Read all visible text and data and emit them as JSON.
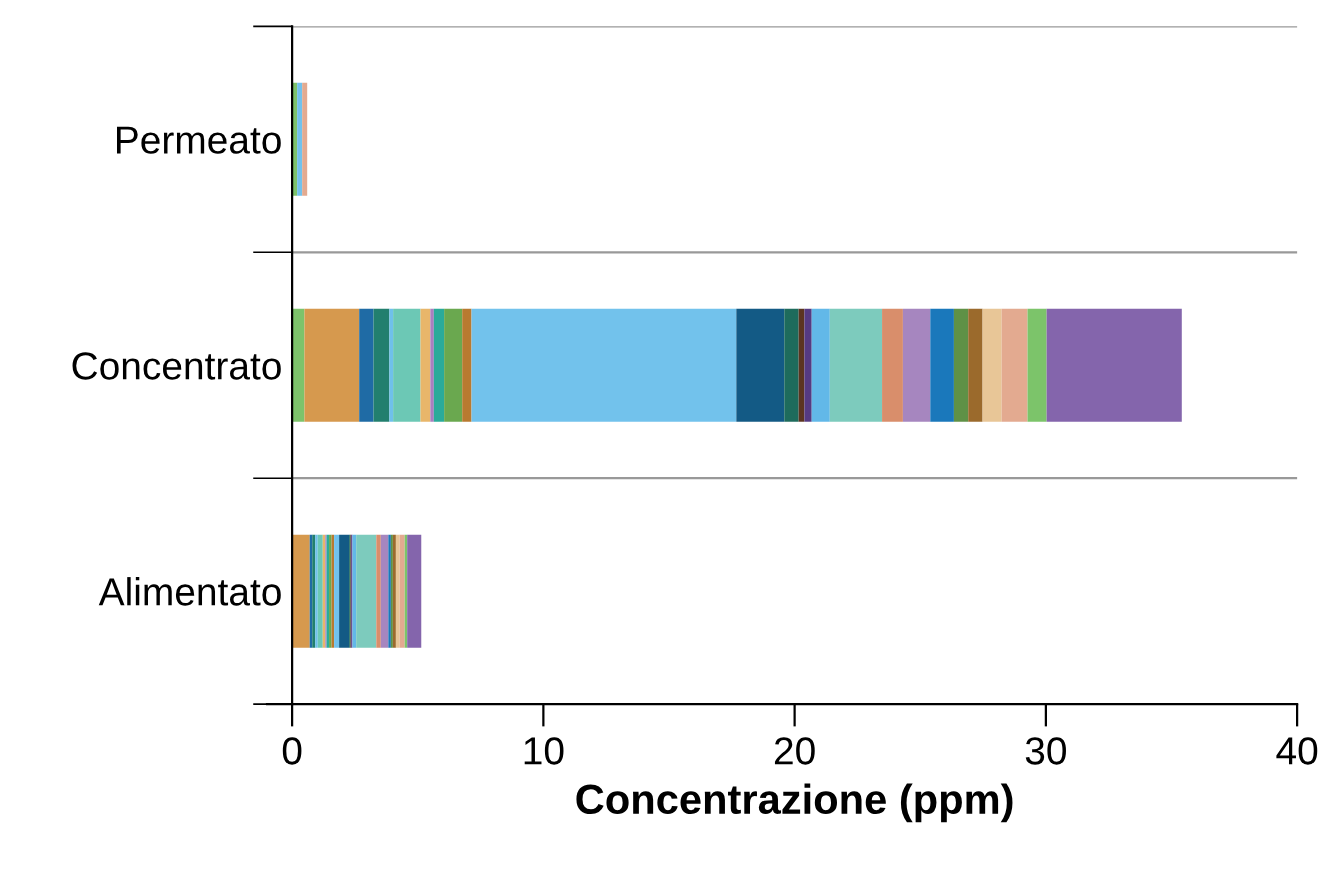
{
  "chart_data": {
    "type": "bar",
    "orientation": "horizontal",
    "stacked": true,
    "categories": [
      "Permeato",
      "Concentrato",
      "Alimentato"
    ],
    "xlabel": "Concentrazione (ppm)",
    "xlim": [
      0,
      40
    ],
    "xticks": [
      0,
      10,
      20,
      30,
      40
    ],
    "grid": "y",
    "legend": false,
    "series": [
      {
        "color": "#7dc36b",
        "values": [
          0.2,
          0.49,
          null
        ]
      },
      {
        "color": "#d6994e",
        "values": [
          0,
          2.18,
          0.7
        ]
      },
      {
        "color": "#1f6ba5",
        "values": [
          0,
          0.57,
          0.1
        ]
      },
      {
        "color": "#227f6e",
        "values": [
          0,
          0.63,
          0.12
        ]
      },
      {
        "color": "#6fc0eb",
        "values": [
          0,
          0.15,
          0.1
        ]
      },
      {
        "color": "#6cc8b5",
        "values": [
          0,
          1.09,
          0.2
        ]
      },
      {
        "color": "#e8b66a",
        "values": [
          0,
          0.39,
          0.1
        ]
      },
      {
        "color": "#a97fc0",
        "values": [
          0,
          0.14,
          0.05
        ]
      },
      {
        "color": "#2aab9a",
        "values": [
          0,
          0.41,
          0.1
        ]
      },
      {
        "color": "#6aa84f",
        "values": [
          0,
          0.72,
          0.1
        ]
      },
      {
        "color": "#b87a30",
        "values": [
          0,
          0.37,
          0.1
        ]
      },
      {
        "color": "#72c2ec",
        "values": [
          0.2,
          10.54,
          0.2
        ]
      },
      {
        "color": "#135a85",
        "values": [
          0,
          1.91,
          0.4
        ]
      },
      {
        "color": "#1e6b5c",
        "values": [
          0,
          0.57,
          0.05
        ]
      },
      {
        "color": "#5b3420",
        "values": [
          0,
          0.23,
          0.03
        ]
      },
      {
        "color": "#553a82",
        "values": [
          0,
          0.29,
          0.05
        ]
      },
      {
        "color": "#62b8e8",
        "values": [
          0,
          0.72,
          0.15
        ]
      },
      {
        "color": "#7dcbbd",
        "values": [
          0,
          2.08,
          0.8
        ]
      },
      {
        "color": "#d98e6b",
        "values": [
          0,
          0.83,
          0.18
        ]
      },
      {
        "color": "#a686bf",
        "values": [
          0,
          1.09,
          0.3
        ]
      },
      {
        "color": "#1a78bb",
        "values": [
          0,
          0.94,
          0.1
        ]
      },
      {
        "color": "#5f9146",
        "values": [
          0,
          0.57,
          0.08
        ]
      },
      {
        "color": "#9b6a2c",
        "values": [
          0,
          0.57,
          0.12
        ]
      },
      {
        "color": "#e8c697",
        "values": [
          0,
          0.76,
          0.15
        ]
      },
      {
        "color": "#e3aa90",
        "values": [
          0.2,
          1.03,
          0.2
        ]
      },
      {
        "color": "#7cc46a",
        "values": [
          0,
          0.76,
          0.1
        ]
      },
      {
        "color": "#8465ac",
        "values": [
          0,
          5.38,
          0.56
        ]
      }
    ]
  }
}
